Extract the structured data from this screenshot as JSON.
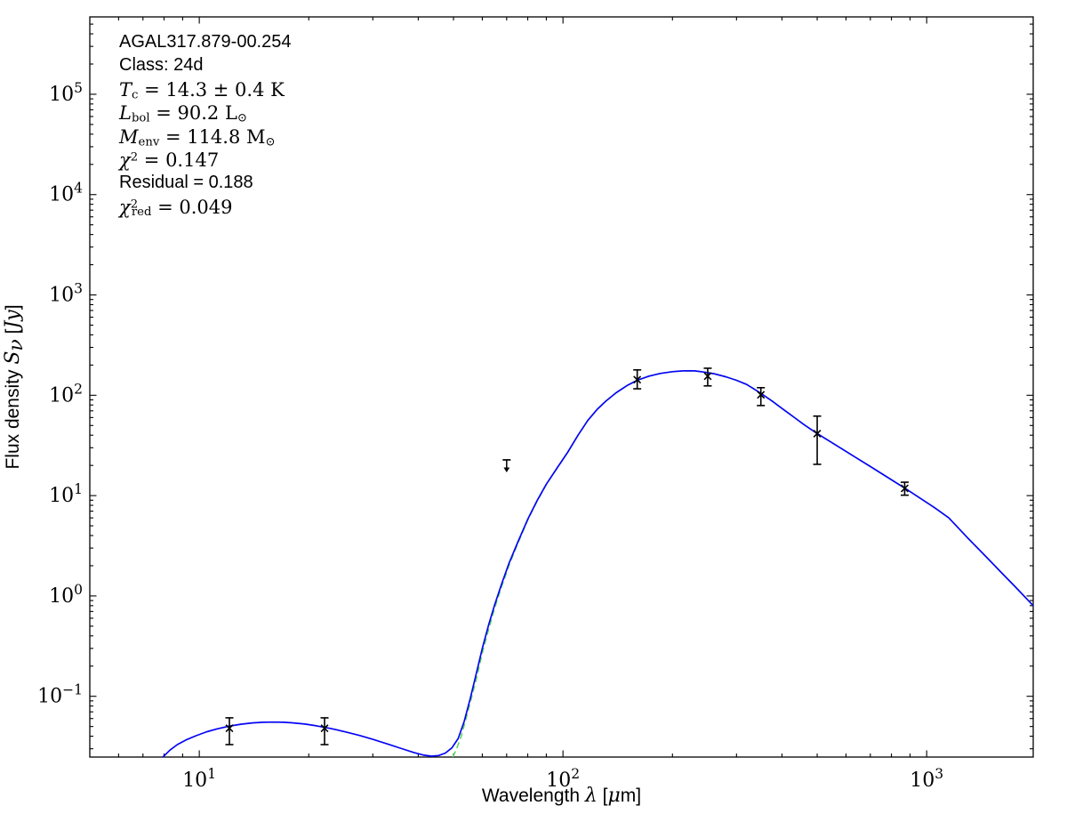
{
  "figure": {
    "background": "#ffffff",
    "axes_color": "#000000"
  },
  "chart_data": {
    "type": "line",
    "title": "",
    "xlabel_segments": [
      {
        "t": "Wavelength ",
        "f": "sans"
      },
      {
        "t": "λ",
        "f": "serif",
        "i": true
      },
      {
        "t": " [",
        "f": "sans"
      },
      {
        "t": "μ",
        "f": "serif",
        "i": true
      },
      {
        "t": "m]",
        "f": "sans"
      }
    ],
    "ylabel_segments": [
      {
        "t": "Flux density ",
        "f": "sans"
      },
      {
        "t": "S",
        "f": "serif",
        "i": true
      },
      {
        "t": "ν",
        "f": "serif",
        "i": true,
        "pos": "sub"
      },
      {
        "t": " [",
        "f": "sans"
      },
      {
        "t": "Jy",
        "f": "serif",
        "i": true
      },
      {
        "t": "]",
        "f": "sans"
      }
    ],
    "x_scale": "log",
    "y_scale": "log",
    "xlim": [
      5.0,
      1963
    ],
    "ylim": [
      0.0248,
      590000
    ],
    "x_major_tick_exponents": [
      1,
      2,
      3
    ],
    "y_major_tick_exponents": [
      5,
      4,
      3,
      2,
      1,
      0,
      -1
    ],
    "grid": false,
    "legend": "none",
    "annotation_lines": [
      {
        "segs": [
          {
            "t": "AGAL317.879-00.254",
            "f": "sans"
          }
        ]
      },
      {
        "segs": [
          {
            "t": "Class: 24d",
            "f": "sans"
          }
        ]
      },
      {
        "segs": [
          {
            "t": "T",
            "f": "serif",
            "i": true
          },
          {
            "t": "c",
            "f": "serif",
            "pos": "sub"
          },
          {
            "t": " = 14.3 ± 0.4 K",
            "f": "serif"
          }
        ]
      },
      {
        "segs": [
          {
            "t": "L",
            "f": "serif",
            "i": true
          },
          {
            "t": "bol",
            "f": "serif",
            "pos": "sub"
          },
          {
            "t": " = 90.2 L",
            "f": "serif"
          },
          {
            "t": "⊙",
            "f": "serif",
            "pos": "sub"
          }
        ]
      },
      {
        "segs": [
          {
            "t": "M",
            "f": "serif",
            "i": true
          },
          {
            "t": "env",
            "f": "serif",
            "pos": "sub"
          },
          {
            "t": " = 114.8 M",
            "f": "serif"
          },
          {
            "t": "⊙",
            "f": "serif",
            "pos": "sub"
          }
        ]
      },
      {
        "segs": [
          {
            "t": "χ",
            "f": "serif",
            "i": true
          },
          {
            "t": "2",
            "f": "serif",
            "pos": "sup"
          },
          {
            "t": " = 0.147",
            "f": "serif"
          }
        ]
      },
      {
        "segs": [
          {
            "t": "Residual = 0.188",
            "f": "sans"
          }
        ]
      },
      {
        "segs": [
          {
            "t": "χ",
            "f": "serif",
            "i": true
          },
          {
            "t": "2",
            "f": "serif",
            "pos": "sup"
          },
          {
            "t": "red",
            "f": "serif",
            "pos": "subafter"
          },
          {
            "t": " = 0.049",
            "f": "serif"
          }
        ]
      }
    ],
    "series": [
      {
        "name": "total-model-fit",
        "style": "solid",
        "color": "#0505f5",
        "points": [
          [
            7.94,
            0.0248
          ],
          [
            8.3,
            0.029
          ],
          [
            8.7,
            0.033
          ],
          [
            9.2,
            0.0368
          ],
          [
            9.8,
            0.0405
          ],
          [
            10.5,
            0.0444
          ],
          [
            11.2,
            0.0474
          ],
          [
            12,
            0.0502
          ],
          [
            13,
            0.0527
          ],
          [
            14,
            0.0543
          ],
          [
            15,
            0.0551
          ],
          [
            16,
            0.0553
          ],
          [
            17,
            0.0551
          ],
          [
            18,
            0.0544
          ],
          [
            19.5,
            0.0529
          ],
          [
            21,
            0.0508
          ],
          [
            23,
            0.0478
          ],
          [
            25,
            0.0446
          ],
          [
            27.5,
            0.0408
          ],
          [
            30,
            0.0372
          ],
          [
            33,
            0.0334
          ],
          [
            36,
            0.0301
          ],
          [
            39,
            0.0274
          ],
          [
            41.5,
            0.0259
          ],
          [
            43.5,
            0.0253
          ],
          [
            45.5,
            0.0257
          ],
          [
            47.5,
            0.0272
          ],
          [
            49.5,
            0.0306
          ],
          [
            51.5,
            0.038
          ],
          [
            53.5,
            0.056
          ],
          [
            55.5,
            0.093
          ],
          [
            57.5,
            0.158
          ],
          [
            60,
            0.3
          ],
          [
            62.5,
            0.52
          ],
          [
            65,
            0.83
          ],
          [
            68,
            1.35
          ],
          [
            71,
            2.1
          ],
          [
            75,
            3.4
          ],
          [
            80,
            5.8
          ],
          [
            85,
            9.0
          ],
          [
            90,
            13
          ],
          [
            96,
            18.5
          ],
          [
            103,
            27
          ],
          [
            110,
            40
          ],
          [
            117,
            56
          ],
          [
            124,
            72
          ],
          [
            131,
            87
          ],
          [
            140,
            106
          ],
          [
            150,
            125
          ],
          [
            160,
            141
          ],
          [
            172,
            155
          ],
          [
            185,
            165
          ],
          [
            200,
            172
          ],
          [
            215,
            175.5
          ],
          [
            230,
            175
          ],
          [
            245,
            170
          ],
          [
            260,
            164
          ],
          [
            280,
            153
          ],
          [
            300,
            141
          ],
          [
            320,
            128
          ],
          [
            340,
            112
          ],
          [
            350,
            104.5
          ],
          [
            375,
            88
          ],
          [
            400,
            74
          ],
          [
            430,
            61
          ],
          [
            460,
            51
          ],
          [
            500,
            41.5
          ],
          [
            560,
            32.2
          ],
          [
            630,
            24.7
          ],
          [
            700,
            19.5
          ],
          [
            790,
            14.8
          ],
          [
            870,
            11.9
          ],
          [
            960,
            9.4
          ],
          [
            1050,
            7.6
          ],
          [
            1150,
            6.0
          ],
          [
            1300,
            3.75
          ],
          [
            1450,
            2.5
          ],
          [
            1600,
            1.73
          ],
          [
            1750,
            1.24
          ],
          [
            1963,
            0.8
          ]
        ]
      },
      {
        "name": "greybody-component",
        "style": "dashed",
        "color": "#55d455",
        "points": [
          [
            49.8,
            0.0248
          ],
          [
            51,
            0.03
          ],
          [
            52.5,
            0.04
          ],
          [
            54,
            0.058
          ],
          [
            56,
            0.096
          ],
          [
            58,
            0.157
          ],
          [
            60,
            0.27
          ],
          [
            62.5,
            0.47
          ],
          [
            65,
            0.77
          ],
          [
            68,
            1.27
          ],
          [
            71,
            2.0
          ],
          [
            75,
            3.3
          ],
          [
            80,
            5.7
          ],
          [
            85,
            8.9
          ],
          [
            90,
            12.9
          ],
          [
            96,
            18.4
          ],
          [
            103,
            27
          ],
          [
            110,
            40
          ],
          [
            117,
            56
          ],
          [
            124,
            72
          ],
          [
            131,
            87
          ],
          [
            140,
            106
          ],
          [
            150,
            125
          ],
          [
            160,
            141
          ],
          [
            172,
            155
          ],
          [
            185,
            165
          ],
          [
            200,
            172
          ],
          [
            215,
            175.5
          ],
          [
            230,
            175
          ],
          [
            245,
            170
          ],
          [
            260,
            164
          ],
          [
            280,
            153
          ],
          [
            300,
            141
          ],
          [
            320,
            128
          ],
          [
            340,
            112
          ],
          [
            350,
            104.5
          ],
          [
            375,
            88
          ],
          [
            400,
            74
          ],
          [
            430,
            61
          ],
          [
            460,
            51
          ],
          [
            500,
            41.5
          ],
          [
            560,
            32.2
          ],
          [
            630,
            24.7
          ],
          [
            700,
            19.5
          ],
          [
            790,
            14.8
          ],
          [
            870,
            11.9
          ],
          [
            960,
            9.4
          ],
          [
            1050,
            7.6
          ],
          [
            1150,
            6.0
          ],
          [
            1300,
            3.75
          ],
          [
            1450,
            2.5
          ],
          [
            1600,
            1.73
          ],
          [
            1750,
            1.24
          ],
          [
            1963,
            0.8
          ]
        ]
      }
    ],
    "photometry": [
      {
        "wavelength_um": 12.1,
        "flux_jy": 0.048,
        "err_hi_jy": 0.061,
        "err_lo_jy": 0.033,
        "upper_limit": false
      },
      {
        "wavelength_um": 22.1,
        "flux_jy": 0.048,
        "err_hi_jy": 0.061,
        "err_lo_jy": 0.033,
        "upper_limit": false
      },
      {
        "wavelength_um": 70,
        "flux_jy": 22.7,
        "upper_limit": true
      },
      {
        "wavelength_um": 160,
        "flux_jy": 143,
        "err_hi_jy": 179,
        "err_lo_jy": 116,
        "upper_limit": false
      },
      {
        "wavelength_um": 250,
        "flux_jy": 155,
        "err_hi_jy": 186,
        "err_lo_jy": 124,
        "upper_limit": false
      },
      {
        "wavelength_um": 350,
        "flux_jy": 101,
        "err_hi_jy": 119,
        "err_lo_jy": 79,
        "upper_limit": false
      },
      {
        "wavelength_um": 500,
        "flux_jy": 41.5,
        "err_hi_jy": 62,
        "err_lo_jy": 20.5,
        "upper_limit": false
      },
      {
        "wavelength_um": 870,
        "flux_jy": 11.8,
        "err_hi_jy": 13.6,
        "err_lo_jy": 10.1,
        "upper_limit": false
      }
    ],
    "marker": {
      "shape": "x",
      "color": "#000000"
    }
  }
}
